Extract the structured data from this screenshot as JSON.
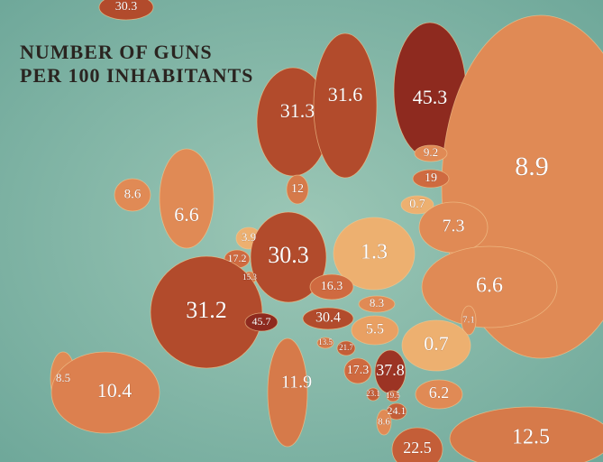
{
  "title": [
    "NUMBER OF GUNS",
    "PER 100 INHABITANTS"
  ],
  "regions": [
    {
      "value": 30.3,
      "color": "#b24b2c"
    },
    {
      "value": 31.3,
      "color": "#b24b2c"
    },
    {
      "value": 31.6,
      "color": "#b24b2c"
    },
    {
      "value": 45.3,
      "color": "#8e2a1f"
    },
    {
      "value": 8.9,
      "color": "#e08a55"
    },
    {
      "value": 9.2,
      "color": "#e08a55"
    },
    {
      "value": 19,
      "color": "#cf6a40"
    },
    {
      "value": 0.7,
      "color": "#edb070"
    },
    {
      "value": 8.6,
      "color": "#e08a55"
    },
    {
      "value": 6.6,
      "color": "#e08a55"
    },
    {
      "value": 12,
      "color": "#d67a4a"
    },
    {
      "value": 7.3,
      "color": "#e08a55"
    },
    {
      "value": 3.9,
      "color": "#edb070"
    },
    {
      "value": 17.2,
      "color": "#cf6a40"
    },
    {
      "value": 15.3,
      "color": "#d67a4a"
    },
    {
      "value": 30.3,
      "color": "#b24b2c"
    },
    {
      "value": 1.3,
      "color": "#edb070"
    },
    {
      "value": 16.3,
      "color": "#cf6a40"
    },
    {
      "value": 6.6,
      "color": "#e08a55"
    },
    {
      "value": 8.3,
      "color": "#e08a55"
    },
    {
      "value": 31.2,
      "color": "#b24b2c"
    },
    {
      "value": 45.7,
      "color": "#8e2a1f"
    },
    {
      "value": 30.4,
      "color": "#b24b2c"
    },
    {
      "value": 5.5,
      "color": "#e9a063"
    },
    {
      "value": 7.1,
      "color": "#e08a55"
    },
    {
      "value": 0.7,
      "color": "#edb070"
    },
    {
      "value": 13.5,
      "color": "#d67a4a"
    },
    {
      "value": 21.7,
      "color": "#c45e38"
    },
    {
      "value": 17.3,
      "color": "#cf6a40"
    },
    {
      "value": 37.8,
      "color": "#9c3424"
    },
    {
      "value": 8.5,
      "color": "#e08a55"
    },
    {
      "value": 10.4,
      "color": "#dc804f"
    },
    {
      "value": 11.9,
      "color": "#d67a4a"
    },
    {
      "value": 23.1,
      "color": "#c45e38"
    },
    {
      "value": 19.5,
      "color": "#cf6a40"
    },
    {
      "value": 6.2,
      "color": "#e08a55"
    },
    {
      "value": 24.1,
      "color": "#c45e38"
    },
    {
      "value": 8.6,
      "color": "#e08a55"
    },
    {
      "value": 22.5,
      "color": "#c45e38"
    },
    {
      "value": 12.5,
      "color": "#d67a4a"
    }
  ]
}
